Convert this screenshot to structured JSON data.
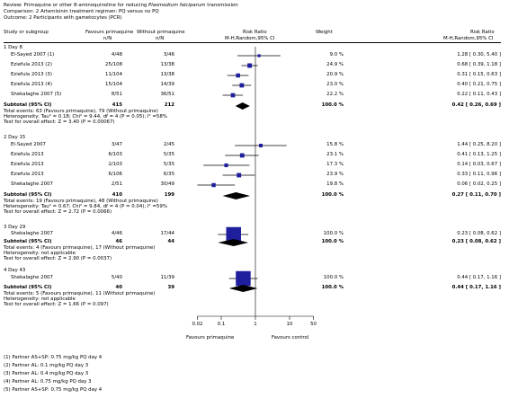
{
  "review": {
    "review_line_prefix": "Review: ",
    "review_title_a": "Primaquine or other 8-aminoquinoline for reducing ",
    "review_title_italic": "Plasmodium falciparum",
    "review_title_b": " transmission",
    "comparison": "Comparison: 2 Artemisinin treatment regimen: PQ versus no PQ",
    "outcome": "Outcome: 2 Participants with gametocytes (PCR)"
  },
  "columns": {
    "study": "Study or subgroup",
    "fav_pq": "Favours primaquine",
    "fav_pq_n": "n/N",
    "without_pq": "Without primaquine",
    "without_pq_n": "n/N",
    "rr": "Risk Ratio",
    "rr_method": "M-H,Random,95% CI",
    "weight": "Weight",
    "rr2": "Risk Ratio",
    "rr2_method": "M-H,Random,95% CI"
  },
  "subgroups": [
    {
      "label": "1 Day 8",
      "rows": [
        {
          "study": "El-Sayed 2007 (1)",
          "pq": "4/48",
          "nopq": "3/46",
          "weight": "9.0 %",
          "rr_text": "1.28 [ 0.30, 5.40 ]"
        },
        {
          "study": "Eziefula 2013 (2)",
          "pq": "25/108",
          "nopq": "13/38",
          "weight": "24.9 %",
          "rr_text": "0.68 [ 0.39, 1.18 ]"
        },
        {
          "study": "Eziefula 2013 (3)",
          "pq": "11/104",
          "nopq": "13/38",
          "weight": "20.9 %",
          "rr_text": "0.31 [ 0.15, 0.63 ]"
        },
        {
          "study": "Eziefula 2013 (4)",
          "pq": "15/104",
          "nopq": "14/39",
          "weight": "23.0 %",
          "rr_text": "0.40 [ 0.21, 0.75 ]"
        },
        {
          "study": "Shekalaghe 2007 (5)",
          "pq": "8/51",
          "nopq": "36/51",
          "weight": "22.2 %",
          "rr_text": "0.22 [ 0.11, 0.43 ]"
        }
      ],
      "subtotal": {
        "label": "Subtotal (95% CI)",
        "pq": "415",
        "nopq": "212",
        "weight": "100.0 %",
        "rr_text": "0.42 [ 0.26, 0.69 ]"
      },
      "notes": [
        "Total events: 63 (Favours primaquine), 79 (Without primaquine)",
        "Heterogeneity: Tau² = 0.18; Chi² = 9.44, df = 4 (P = 0.05); I² =58%",
        "Test for overall effect: Z = 3.40 (P = 0.00067)"
      ]
    },
    {
      "label": "2 Day 15",
      "rows": [
        {
          "study": "El-Sayed 2007",
          "pq": "3/47",
          "nopq": "2/45",
          "weight": "15.8 %",
          "rr_text": "1.44 [ 0.25, 8.20 ]"
        },
        {
          "study": "Eziefula 2013",
          "pq": "6/103",
          "nopq": "5/35",
          "weight": "23.1 %",
          "rr_text": "0.41 [ 0.13, 1.25 ]"
        },
        {
          "study": "Eziefula 2013",
          "pq": "2/103",
          "nopq": "5/35",
          "weight": "17.3 %",
          "rr_text": "0.14 [ 0.03, 0.67 ]"
        },
        {
          "study": "Eziefula 2013",
          "pq": "6/106",
          "nopq": "6/35",
          "weight": "23.9 %",
          "rr_text": "0.33 [ 0.11, 0.96 ]"
        },
        {
          "study": "Shekalaghe 2007",
          "pq": "2/51",
          "nopq": "30/49",
          "weight": "19.8 %",
          "rr_text": "0.06 [ 0.02, 0.25 ]"
        }
      ],
      "subtotal": {
        "label": "Subtotal (95% CI)",
        "pq": "410",
        "nopq": "199",
        "weight": "100.0 %",
        "rr_text": "0.27 [ 0.11, 0.70 ]"
      },
      "notes": [
        "Total events: 19 (Favours primaquine), 48 (Without primaquine)",
        "Heterogeneity: Tau² = 0.67; Chi² = 9.84, df = 4 (P = 0.04); I² =59%",
        "Test for overall effect: Z = 2.72 (P = 0.0066)"
      ]
    },
    {
      "label": "3 Day 29",
      "rows": [
        {
          "study": "Shekalaghe 2007",
          "pq": "4/46",
          "nopq": "17/44",
          "weight": "100.0 %",
          "rr_text": "0.23 [ 0.08, 0.62 ]"
        }
      ],
      "subtotal": {
        "label": "Subtotal (95% CI)",
        "pq": "46",
        "nopq": "44",
        "weight": "100.0 %",
        "rr_text": "0.23 [ 0.08, 0.62 ]"
      },
      "notes": [
        "Total events: 4 (Favours primaquine), 17 (Without primaquine)",
        "Heterogeneity: not applicable",
        "Test for overall effect: Z = 2.90 (P = 0.0037)"
      ]
    },
    {
      "label": "4 Day 43",
      "rows": [
        {
          "study": "Shekalaghe 2007",
          "pq": "5/40",
          "nopq": "11/39",
          "weight": "100.0 %",
          "rr_text": "0.44 [ 0.17, 1.16 ]"
        }
      ],
      "subtotal": {
        "label": "Subtotal (95% CI)",
        "pq": "40",
        "nopq": "39",
        "weight": "100.0 %",
        "rr_text": "0.44 [ 0.17, 1.16 ]"
      },
      "notes": [
        "Total events: 5 (Favours primaquine), 11 (Without primaquine)",
        "Heterogeneity: not applicable",
        "Test for overall effect: Z = 1.66 (P = 0.097)"
      ]
    }
  ],
  "axis": {
    "ticks": [
      "0.02",
      "0.1",
      "1",
      "10",
      "50"
    ],
    "left_label": "Favours primaquine",
    "right_label": "Favours control"
  },
  "footnotes": [
    "(1) Partner AS+SP: 0.75 mg/kg PQ day 4",
    "(2) Partner AL: 0.1 mg/kg PQ day 3",
    "(3) Partner AL: 0.4 mg/kg PQ day 3",
    "(4) Partner AL: 0.75 mg/kg PQ day 3",
    "(5) Partner AS+SP: 0.75 mg/kg PQ day 4"
  ],
  "colors": {
    "marker": "#1f1f9e",
    "diamond": "#000000",
    "line": "#000000"
  },
  "chart_data": {
    "type": "forest",
    "x_scale": "log",
    "xlim": [
      0.02,
      50
    ],
    "x_ticks": [
      0.02,
      0.1,
      1,
      10,
      50
    ],
    "xlabel_left": "Favours primaquine",
    "xlabel_right": "Favours control",
    "subgroups": [
      {
        "name": "1 Day 8",
        "studies": [
          {
            "rr": 1.28,
            "lo": 0.3,
            "hi": 5.4,
            "weight": 9.0
          },
          {
            "rr": 0.68,
            "lo": 0.39,
            "hi": 1.18,
            "weight": 24.9
          },
          {
            "rr": 0.31,
            "lo": 0.15,
            "hi": 0.63,
            "weight": 20.9
          },
          {
            "rr": 0.4,
            "lo": 0.21,
            "hi": 0.75,
            "weight": 23.0
          },
          {
            "rr": 0.22,
            "lo": 0.11,
            "hi": 0.43,
            "weight": 22.2
          }
        ],
        "pooled": {
          "rr": 0.42,
          "lo": 0.26,
          "hi": 0.69
        }
      },
      {
        "name": "2 Day 15",
        "studies": [
          {
            "rr": 1.44,
            "lo": 0.25,
            "hi": 8.2,
            "weight": 15.8
          },
          {
            "rr": 0.41,
            "lo": 0.13,
            "hi": 1.25,
            "weight": 23.1
          },
          {
            "rr": 0.14,
            "lo": 0.03,
            "hi": 0.67,
            "weight": 17.3
          },
          {
            "rr": 0.33,
            "lo": 0.11,
            "hi": 0.96,
            "weight": 23.9
          },
          {
            "rr": 0.06,
            "lo": 0.02,
            "hi": 0.25,
            "weight": 19.8
          }
        ],
        "pooled": {
          "rr": 0.27,
          "lo": 0.11,
          "hi": 0.7
        }
      },
      {
        "name": "3 Day 29",
        "studies": [
          {
            "rr": 0.23,
            "lo": 0.08,
            "hi": 0.62,
            "weight": 100.0
          }
        ],
        "pooled": {
          "rr": 0.23,
          "lo": 0.08,
          "hi": 0.62
        }
      },
      {
        "name": "4 Day 43",
        "studies": [
          {
            "rr": 0.44,
            "lo": 0.17,
            "hi": 1.16,
            "weight": 100.0
          }
        ],
        "pooled": {
          "rr": 0.44,
          "lo": 0.17,
          "hi": 1.16
        }
      }
    ]
  }
}
